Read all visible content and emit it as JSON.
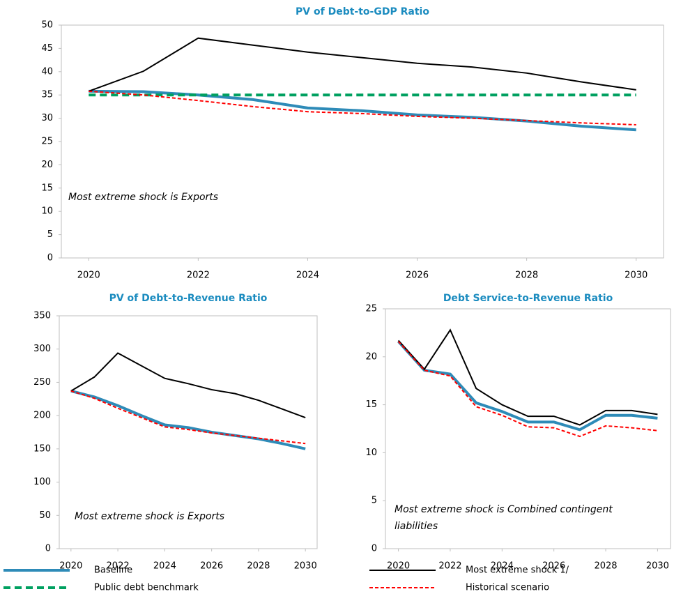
{
  "chart_data": [
    {
      "type": "line",
      "title": "PV of Debt-to-GDP  Ratio",
      "x": [
        2020,
        2021,
        2022,
        2023,
        2024,
        2025,
        2026,
        2027,
        2028,
        2029,
        2030
      ],
      "xlim": [
        2019.5,
        2030.5
      ],
      "xticks": [
        2020,
        2022,
        2024,
        2026,
        2028,
        2030
      ],
      "ylim": [
        0,
        50
      ],
      "yticks": [
        0,
        5,
        10,
        15,
        20,
        25,
        30,
        35,
        40,
        45,
        50
      ],
      "annotation": [
        "Most extreme  shock is Exports"
      ],
      "series": [
        {
          "name": "Baseline",
          "color": "#2e8bb8",
          "linestyle": "solid",
          "linewidth": 4,
          "values": [
            35.8,
            35.7,
            35.0,
            34.0,
            32.2,
            31.6,
            30.7,
            30.2,
            29.4,
            28.3,
            27.5
          ]
        },
        {
          "name": "Public debt benchmark",
          "color": "#00a060",
          "linestyle": "dashed",
          "linewidth": 4,
          "values": [
            35,
            35,
            35,
            35,
            35,
            35,
            35,
            35,
            35,
            35,
            35
          ]
        },
        {
          "name": "Most extreme shock 1/",
          "color": "#000000",
          "linestyle": "solid",
          "linewidth": 2,
          "values": [
            35.8,
            40.1,
            47.2,
            45.7,
            44.2,
            43.0,
            41.8,
            41.0,
            39.7,
            37.8,
            36.1
          ]
        },
        {
          "name": "Historical scenario",
          "color": "#ff0000",
          "linestyle": "dashed",
          "linewidth": 2,
          "values": [
            35.8,
            35.0,
            33.8,
            32.5,
            31.4,
            31.0,
            30.4,
            30.0,
            29.5,
            29.0,
            28.6
          ]
        }
      ]
    },
    {
      "type": "line",
      "title": "PV of Debt-to-Revenue  Ratio",
      "x": [
        2020,
        2021,
        2022,
        2023,
        2024,
        2025,
        2026,
        2027,
        2028,
        2029,
        2030
      ],
      "xlim": [
        2019.5,
        2030.5
      ],
      "xticks": [
        2020,
        2022,
        2024,
        2026,
        2028,
        2030
      ],
      "ylim": [
        0,
        350
      ],
      "yticks": [
        0,
        50,
        100,
        150,
        200,
        250,
        300,
        350
      ],
      "annotation": [
        "Most extreme  shock is Exports"
      ],
      "series": [
        {
          "name": "Baseline",
          "color": "#2e8bb8",
          "linestyle": "solid",
          "linewidth": 4,
          "values": [
            237,
            228,
            215,
            200,
            186,
            182,
            175,
            170,
            165,
            158,
            150
          ]
        },
        {
          "name": "Most extreme shock 1/",
          "color": "#000000",
          "linestyle": "solid",
          "linewidth": 2,
          "values": [
            237,
            258,
            294,
            275,
            256,
            248,
            239,
            233,
            223,
            210,
            197
          ]
        },
        {
          "name": "Historical scenario",
          "color": "#ff0000",
          "linestyle": "dashed",
          "linewidth": 2,
          "values": [
            237,
            226,
            211,
            197,
            183,
            179,
            174,
            170,
            166,
            162,
            158
          ]
        }
      ]
    },
    {
      "type": "line",
      "title": "Debt Service-to-Revenue  Ratio",
      "x": [
        2020,
        2021,
        2022,
        2023,
        2024,
        2025,
        2026,
        2027,
        2028,
        2029,
        2030
      ],
      "xlim": [
        2019.5,
        2030.5
      ],
      "xticks": [
        2020,
        2022,
        2024,
        2026,
        2028,
        2030
      ],
      "ylim": [
        0,
        25
      ],
      "yticks": [
        0,
        5,
        10,
        15,
        20,
        25
      ],
      "annotation": [
        "Most extreme  shock is Combined  contingent",
        "liabilities"
      ],
      "series": [
        {
          "name": "Baseline",
          "color": "#2e8bb8",
          "linestyle": "solid",
          "linewidth": 4,
          "values": [
            21.6,
            18.6,
            18.2,
            15.2,
            14.3,
            13.2,
            13.2,
            12.4,
            13.9,
            13.9,
            13.6
          ]
        },
        {
          "name": "Most extreme shock 1/",
          "color": "#000000",
          "linestyle": "solid",
          "linewidth": 2,
          "values": [
            21.7,
            18.7,
            22.8,
            16.7,
            15.0,
            13.8,
            13.8,
            12.9,
            14.4,
            14.4,
            14.0
          ]
        },
        {
          "name": "Historical scenario",
          "color": "#ff0000",
          "linestyle": "dashed",
          "linewidth": 2,
          "values": [
            21.6,
            18.6,
            18.0,
            14.8,
            13.9,
            12.7,
            12.6,
            11.7,
            12.8,
            12.6,
            12.3
          ]
        }
      ]
    }
  ]
}
